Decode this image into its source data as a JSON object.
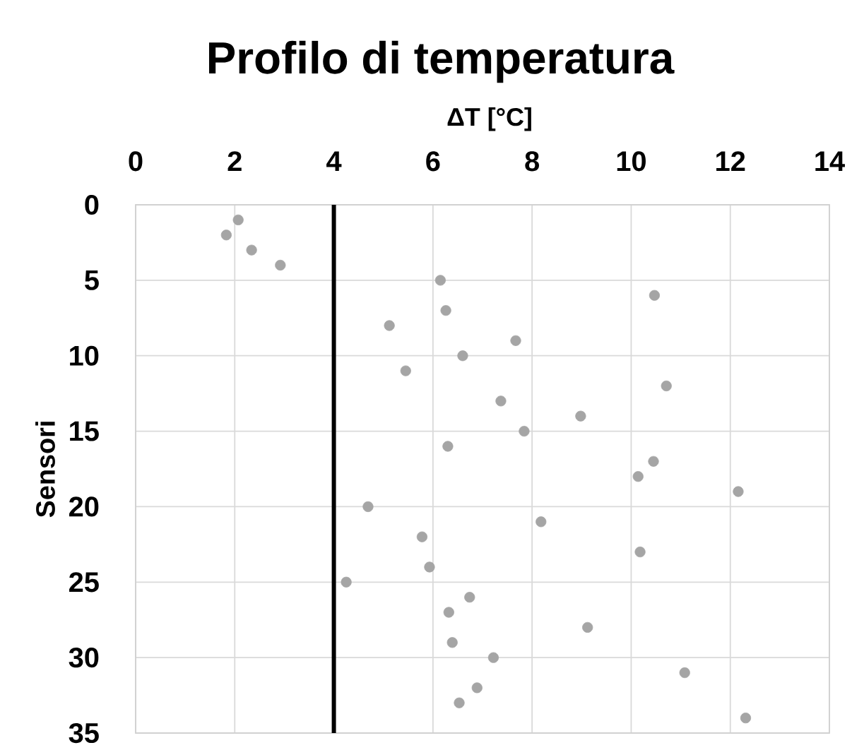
{
  "chart_data": {
    "type": "scatter",
    "title": "Profilo di temperatura",
    "xlabel": "ΔT [°C]",
    "ylabel": "Sensori",
    "xlim": [
      0,
      14
    ],
    "xticks": [
      0,
      2,
      4,
      6,
      8,
      10,
      12,
      14
    ],
    "ylim": [
      35,
      0
    ],
    "yticks": [
      0,
      5,
      10,
      15,
      20,
      25,
      30,
      35
    ],
    "grid": true,
    "marker": "circle",
    "legend": false,
    "ref_lines": [
      {
        "axis": "x",
        "value": 4,
        "color": "#000000",
        "line_style": "solid"
      }
    ],
    "series": [
      {
        "color": "#a5a5a5",
        "x": [
          2.07,
          1.83,
          2.34,
          2.92,
          6.15,
          10.47,
          6.26,
          5.12,
          7.67,
          6.6,
          5.45,
          10.71,
          7.37,
          8.98,
          7.84,
          6.3,
          10.45,
          10.14,
          12.16,
          4.69,
          8.18,
          5.78,
          10.18,
          5.93,
          4.25,
          6.74,
          6.32,
          9.12,
          6.39,
          7.22,
          11.08,
          6.89,
          6.53,
          12.31
        ],
        "values": [
          1,
          2,
          3,
          4,
          5,
          6,
          7,
          8,
          9,
          10,
          11,
          12,
          13,
          14,
          15,
          16,
          17,
          18,
          19,
          20,
          21,
          22,
          23,
          24,
          25,
          26,
          27,
          28,
          29,
          30,
          31,
          32,
          33,
          34
        ]
      }
    ]
  }
}
